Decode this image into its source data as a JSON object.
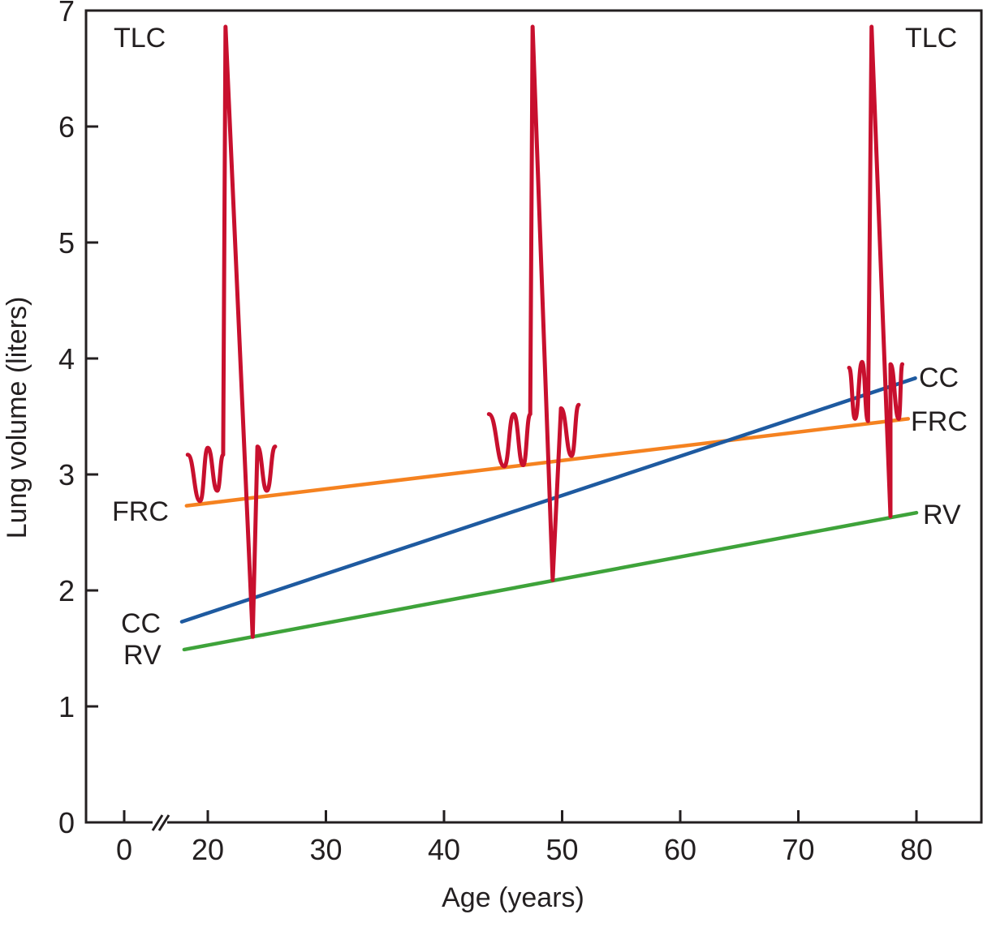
{
  "chart_data": {
    "type": "line",
    "title": "",
    "xlabel": "Age (years)",
    "ylabel": "Lung volume (liters)",
    "xlim": [
      0,
      80
    ],
    "ylim": [
      0,
      7
    ],
    "x_axis_break": "between 0 and 20",
    "x_ticks": [
      0,
      20,
      30,
      40,
      50,
      60,
      70,
      80
    ],
    "y_ticks": [
      0,
      1,
      2,
      3,
      4,
      5,
      6,
      7
    ],
    "grid": false,
    "series": [
      {
        "name": "FRC",
        "color": "#f58220",
        "x": [
          18.2,
          79.3
        ],
        "y": [
          2.73,
          3.48
        ]
      },
      {
        "name": "CC",
        "color": "#1e5aa0",
        "x": [
          17.8,
          79.9
        ],
        "y": [
          1.73,
          3.83
        ]
      },
      {
        "name": "RV",
        "color": "#3ea33a",
        "x": [
          18.0,
          80.0
        ],
        "y": [
          1.49,
          2.67
        ]
      }
    ],
    "spirometry_traces": {
      "color": "#c8102e",
      "traces": [
        {
          "name": "age-20s",
          "points": [
            [
              18.3,
              3.17
            ],
            [
              19.35,
              2.77
            ],
            [
              20.0,
              3.23
            ],
            [
              20.8,
              2.86
            ],
            [
              21.3,
              3.17
            ],
            [
              21.5,
              6.86
            ],
            [
              23.8,
              1.6
            ],
            [
              24.2,
              3.24
            ],
            [
              25.0,
              2.86
            ],
            [
              25.7,
              3.24
            ]
          ]
        },
        {
          "name": "age-40s",
          "points": [
            [
              43.8,
              3.52
            ],
            [
              45.1,
              3.07
            ],
            [
              45.9,
              3.52
            ],
            [
              46.7,
              3.08
            ],
            [
              47.3,
              3.52
            ],
            [
              47.5,
              6.86
            ],
            [
              49.2,
              2.09
            ],
            [
              49.9,
              3.57
            ],
            [
              50.8,
              3.16
            ],
            [
              51.4,
              3.6
            ]
          ]
        },
        {
          "name": "age-70s",
          "points": [
            [
              74.3,
              3.92
            ],
            [
              74.8,
              3.48
            ],
            [
              75.4,
              3.97
            ],
            [
              75.9,
              3.46
            ],
            [
              76.2,
              6.86
            ],
            [
              77.8,
              2.64
            ],
            [
              77.8,
              3.95
            ],
            [
              78.5,
              3.48
            ],
            [
              78.8,
              3.95
            ]
          ]
        }
      ]
    },
    "annotations": [
      {
        "text": "TLC",
        "position": "top-left"
      },
      {
        "text": "TLC",
        "position": "top-right"
      },
      {
        "text": "FRC",
        "position": "left, at FRC line start"
      },
      {
        "text": "CC",
        "position": "left, at CC line start"
      },
      {
        "text": "RV",
        "position": "left, at RV line start"
      },
      {
        "text": "CC",
        "position": "right, at CC line end"
      },
      {
        "text": "FRC",
        "position": "right, at FRC line end"
      },
      {
        "text": "RV",
        "position": "right, at RV line end"
      }
    ]
  }
}
